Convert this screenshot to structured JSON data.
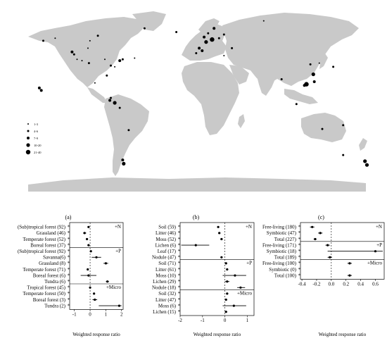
{
  "map": {
    "legend": [
      "1-3",
      "4-6",
      "7-9",
      "10-20",
      "21-40"
    ],
    "colors": {
      "land": "#c9c9c9",
      "points": "#000000"
    },
    "sites": [
      {
        "lon": -140,
        "lat": 60,
        "size": 1
      },
      {
        "lon": -152,
        "lat": 58,
        "size": 2
      },
      {
        "lon": -123,
        "lat": 49,
        "size": 3
      },
      {
        "lon": -121,
        "lat": 47,
        "size": 2
      },
      {
        "lon": -118,
        "lat": 43,
        "size": 1
      },
      {
        "lon": -113,
        "lat": 42,
        "size": 1
      },
      {
        "lon": -106,
        "lat": 40,
        "size": 2
      },
      {
        "lon": -90,
        "lat": 43,
        "size": 1
      },
      {
        "lon": -84,
        "lat": 38,
        "size": 2
      },
      {
        "lon": -75,
        "lat": 42,
        "size": 3
      },
      {
        "lon": -72,
        "lat": 43,
        "size": 2
      },
      {
        "lon": -80,
        "lat": 37,
        "size": 1
      },
      {
        "lon": -88,
        "lat": 30,
        "size": 2
      },
      {
        "lon": -97,
        "lat": 62,
        "size": 2
      },
      {
        "lon": -105,
        "lat": 58,
        "size": 1
      },
      {
        "lon": -100,
        "lat": 24,
        "size": 1
      },
      {
        "lon": -156,
        "lat": 20,
        "size": 3
      },
      {
        "lon": -154,
        "lat": 18,
        "size": 3
      },
      {
        "lon": -85,
        "lat": 10,
        "size": 3
      },
      {
        "lon": -80,
        "lat": 8,
        "size": 4
      },
      {
        "lon": -84,
        "lat": 12,
        "size": 2
      },
      {
        "lon": -75,
        "lat": 4,
        "size": 2
      },
      {
        "lon": -66,
        "lat": -14,
        "size": 2
      },
      {
        "lon": -72,
        "lat": -38,
        "size": 3
      },
      {
        "lon": -71,
        "lat": -41,
        "size": 4
      },
      {
        "lon": 2,
        "lat": 48,
        "size": 2
      },
      {
        "lon": 8,
        "lat": 50,
        "size": 3
      },
      {
        "lon": 5,
        "lat": 52,
        "size": 3
      },
      {
        "lon": 12,
        "lat": 57,
        "size": 4
      },
      {
        "lon": 18,
        "lat": 59,
        "size": 5
      },
      {
        "lon": 10,
        "lat": 61,
        "size": 3
      },
      {
        "lon": 20,
        "lat": 68,
        "size": 3
      },
      {
        "lon": 14,
        "lat": 64,
        "size": 2
      },
      {
        "lon": 25,
        "lat": 60,
        "size": 2
      },
      {
        "lon": 30,
        "lat": 63,
        "size": 2
      },
      {
        "lon": -18,
        "lat": 65,
        "size": 2
      },
      {
        "lon": -50,
        "lat": 68,
        "size": 2
      },
      {
        "lon": 70,
        "lat": 74,
        "size": 1
      },
      {
        "lon": 38,
        "lat": 52,
        "size": 2
      },
      {
        "lon": 30,
        "lat": 46,
        "size": 1
      },
      {
        "lon": 117,
        "lat": 39,
        "size": 2
      },
      {
        "lon": 120,
        "lat": 31,
        "size": 4
      },
      {
        "lon": 113,
        "lat": 23,
        "size": 5
      },
      {
        "lon": 111,
        "lat": 22,
        "size": 3
      },
      {
        "lon": 121,
        "lat": 25,
        "size": 3
      },
      {
        "lon": 126,
        "lat": 40,
        "size": 1
      },
      {
        "lon": 88,
        "lat": 27,
        "size": 2
      },
      {
        "lon": 140,
        "lat": 37,
        "size": 2
      },
      {
        "lon": 103,
        "lat": 7,
        "size": 2
      },
      {
        "lon": 150,
        "lat": -10,
        "size": 2
      },
      {
        "lon": 129,
        "lat": -13,
        "size": 2
      },
      {
        "lon": 150,
        "lat": -34,
        "size": 2
      },
      {
        "lon": 172,
        "lat": -39,
        "size": 4
      },
      {
        "lon": 174,
        "lat": -42,
        "size": 4
      },
      {
        "lon": -107,
        "lat": 52,
        "size": 1
      },
      {
        "lon": -60,
        "lat": 44,
        "size": 1
      }
    ]
  },
  "panels": [
    {
      "label": "(a)",
      "xlabel": "Weighted response ratio",
      "xticks": [
        -1,
        0,
        1,
        2
      ],
      "groups": [
        {
          "tag": "+N",
          "items": [
            {
              "label": "(Sub)tropical forest (92)",
              "mean": -0.1,
              "lo": -0.13,
              "hi": -0.07
            },
            {
              "label": "Grassland (46)",
              "mean": -0.35,
              "lo": -0.45,
              "hi": -0.25
            },
            {
              "label": "Temperate forest (52)",
              "mean": -0.2,
              "lo": -0.25,
              "hi": -0.15
            },
            {
              "label": "Boreal forest (37)",
              "mean": -0.1,
              "lo": -0.15,
              "hi": -0.05
            }
          ]
        },
        {
          "tag": "+P",
          "items": [
            {
              "label": "(Sub)tropical forest (92)",
              "mean": 0.05,
              "lo": 0.0,
              "hi": 0.1
            },
            {
              "label": "Savanna(6)",
              "mean": 0.4,
              "lo": 0.1,
              "hi": 0.7
            },
            {
              "label": "Grassland (8)",
              "mean": 1.0,
              "lo": 0.85,
              "hi": 1.15
            },
            {
              "label": "Temperate forest (71)",
              "mean": -0.15,
              "lo": -0.2,
              "hi": -0.1
            },
            {
              "label": "Boreal forest (6)",
              "mean": -0.1,
              "lo": -0.6,
              "hi": 0.4
            },
            {
              "label": "Tundra (6)",
              "mean": 1.1,
              "lo": 1.0,
              "hi": 1.2
            }
          ]
        },
        {
          "tag": "+Micro",
          "items": [
            {
              "label": "Tropical forest (45)",
              "mean": 0.0,
              "lo": -0.05,
              "hi": 0.05
            },
            {
              "label": "Temperate forest (50)",
              "mean": 0.25,
              "lo": 0.2,
              "hi": 0.3
            },
            {
              "label": "Boreal forest (3)",
              "mean": 0.3,
              "lo": 0.15,
              "hi": 0.45
            },
            {
              "label": "Tundra (2)",
              "mean": 1.85,
              "lo": 0.55,
              "hi": 2.0
            }
          ]
        }
      ]
    },
    {
      "label": "(b)",
      "xlabel": "Weighted response ratio",
      "xticks": [
        -2,
        -1,
        0,
        1
      ],
      "groups": [
        {
          "tag": "+N",
          "items": [
            {
              "label": "Soil (59)",
              "mean": -0.3,
              "lo": -0.35,
              "hi": -0.25
            },
            {
              "label": "Litter (46)",
              "mean": -0.25,
              "lo": -0.3,
              "hi": -0.2
            },
            {
              "label": "Moss (52)",
              "mean": -0.15,
              "lo": -0.2,
              "hi": -0.1
            },
            {
              "label": "Lichen (6)",
              "mean": -1.3,
              "lo": -1.95,
              "hi": -0.7
            },
            {
              "label": "Leaf (17)",
              "mean": null,
              "lo": null,
              "hi": null
            },
            {
              "label": "Nodule (47)",
              "mean": -0.15,
              "lo": -0.2,
              "hi": -0.1
            }
          ]
        },
        {
          "tag": "+P",
          "items": [
            {
              "label": "Soil (71)",
              "mean": 0.05,
              "lo": 0.0,
              "hi": 0.1
            },
            {
              "label": "Litter (61)",
              "mean": 0.1,
              "lo": 0.05,
              "hi": 0.15
            },
            {
              "label": "Moss (10)",
              "mean": 0.45,
              "lo": -0.1,
              "hi": 0.95
            },
            {
              "label": "Lichen (29)",
              "mean": 0.1,
              "lo": 0.0,
              "hi": 0.2
            },
            {
              "label": "Nodule (18)",
              "mean": 0.7,
              "lo": 0.55,
              "hi": 0.9
            }
          ]
        },
        {
          "tag": "+Micro",
          "items": [
            {
              "label": "Soil (32)",
              "mean": 0.1,
              "lo": 0.05,
              "hi": 0.15
            },
            {
              "label": "Litter (47)",
              "mean": 0.05,
              "lo": 0.0,
              "hi": 0.1
            },
            {
              "label": "Moss (6)",
              "mean": 0.4,
              "lo": -0.1,
              "hi": 0.95
            },
            {
              "label": "Lichen (15)",
              "mean": 0.05,
              "lo": 0.0,
              "hi": 0.1
            }
          ]
        }
      ]
    },
    {
      "label": "(c)",
      "xlabel": "Weighted response ratio",
      "xticks": [
        -0.4,
        -0.2,
        0.0,
        0.2,
        0.4,
        0.6
      ],
      "groups": [
        {
          "tag": "+N",
          "items": [
            {
              "label": "Free-living (180)",
              "mean": -0.26,
              "lo": -0.29,
              "hi": -0.23
            },
            {
              "label": "Symbiotic (47)",
              "mean": -0.15,
              "lo": -0.18,
              "hi": -0.12
            },
            {
              "label": "Total (227)",
              "mean": -0.22,
              "lo": -0.24,
              "hi": -0.2
            }
          ]
        },
        {
          "tag": "+P",
          "items": [
            {
              "label": "Free-living (171)",
              "mean": -0.05,
              "lo": -0.08,
              "hi": -0.02
            },
            {
              "label": "Symbiotic (18)",
              "mean": 0.6,
              "lo": -0.05,
              "hi": 0.7
            },
            {
              "label": "Total (189)",
              "mean": -0.02,
              "lo": -0.05,
              "hi": 0.01
            }
          ]
        },
        {
          "tag": "+Micro",
          "items": [
            {
              "label": "Free-living (100)",
              "mean": 0.25,
              "lo": 0.22,
              "hi": 0.28
            },
            {
              "label": "Symbiotic (0)",
              "mean": null,
              "lo": null,
              "hi": null
            },
            {
              "label": "Total (100)",
              "mean": 0.25,
              "lo": 0.22,
              "hi": 0.28
            }
          ]
        }
      ]
    }
  ],
  "chart_data": [
    {
      "type": "scatter",
      "x": [
        -140,
        -152,
        -123,
        -121,
        -118,
        -113,
        -106,
        -90,
        -84,
        -75,
        -72,
        -80,
        -88,
        -97,
        -105,
        -100,
        -156,
        -154,
        -85,
        -80,
        -84,
        -75,
        -66,
        -72,
        -71,
        2,
        8,
        5,
        12,
        18,
        10,
        20,
        14,
        25,
        30,
        -18,
        -50,
        70,
        38,
        30,
        117,
        120,
        113,
        111,
        121,
        126,
        88,
        140,
        103,
        150,
        129,
        150,
        172,
        174,
        -107,
        -60
      ],
      "y": [
        60,
        58,
        49,
        47,
        43,
        42,
        40,
        43,
        38,
        42,
        43,
        37,
        30,
        62,
        58,
        24,
        20,
        18,
        10,
        8,
        12,
        4,
        -14,
        -38,
        -41,
        48,
        50,
        52,
        57,
        59,
        61,
        68,
        64,
        60,
        63,
        65,
        68,
        74,
        52,
        46,
        39,
        31,
        23,
        22,
        25,
        40,
        27,
        37,
        7,
        -10,
        -13,
        -34,
        -39,
        -42,
        52,
        44
      ],
      "legend": [
        "1-3",
        "4-6",
        "7-9",
        "10-20",
        "21-40"
      ]
    },
    {
      "type": "scatter",
      "title": "(a)",
      "xlabel": "Weighted response ratio",
      "xlim": [
        -1.3,
        2.1
      ],
      "categories": [
        "(Sub)tropical forest (92)",
        "Grassland (46)",
        "Temperate forest (52)",
        "Boreal forest (37)",
        "(Sub)tropical forest (92)",
        "Savanna(6)",
        "Grassland (8)",
        "Temperate forest (71)",
        "Boreal forest (6)",
        "Tundra (6)",
        "Tropical forest (45)",
        "Temperate forest (50)",
        "Boreal forest (3)",
        "Tundra (2)"
      ],
      "values": [
        -0.1,
        -0.35,
        -0.2,
        -0.1,
        0.05,
        0.4,
        1.0,
        -0.15,
        -0.1,
        1.1,
        0.0,
        0.25,
        0.3,
        1.85
      ]
    },
    {
      "type": "scatter",
      "title": "(b)",
      "xlabel": "Weighted response ratio",
      "xlim": [
        -2.0,
        1.3
      ],
      "categories": [
        "Soil (59)",
        "Litter (46)",
        "Moss (52)",
        "Lichen (6)",
        "Leaf (17)",
        "Nodule (47)",
        "Soil (71)",
        "Litter (61)",
        "Moss (10)",
        "Lichen (29)",
        "Nodule (18)",
        "Soil (32)",
        "Litter (47)",
        "Moss (6)",
        "Lichen (15)"
      ],
      "values": [
        -0.3,
        -0.25,
        -0.15,
        -1.3,
        null,
        -0.15,
        0.05,
        0.1,
        0.45,
        0.1,
        0.7,
        0.1,
        0.05,
        0.4,
        0.05
      ]
    },
    {
      "type": "scatter",
      "title": "(c)",
      "xlabel": "Weighted response ratio",
      "xlim": [
        -0.42,
        0.72
      ],
      "categories": [
        "Free-living (180)",
        "Symbiotic (47)",
        "Total (227)",
        "Free-living (171)",
        "Symbiotic (18)",
        "Total (189)",
        "Free-living (100)",
        "Symbiotic (0)",
        "Total (100)"
      ],
      "values": [
        -0.26,
        -0.15,
        -0.22,
        -0.05,
        0.6,
        -0.02,
        0.25,
        null,
        0.25
      ]
    }
  ]
}
